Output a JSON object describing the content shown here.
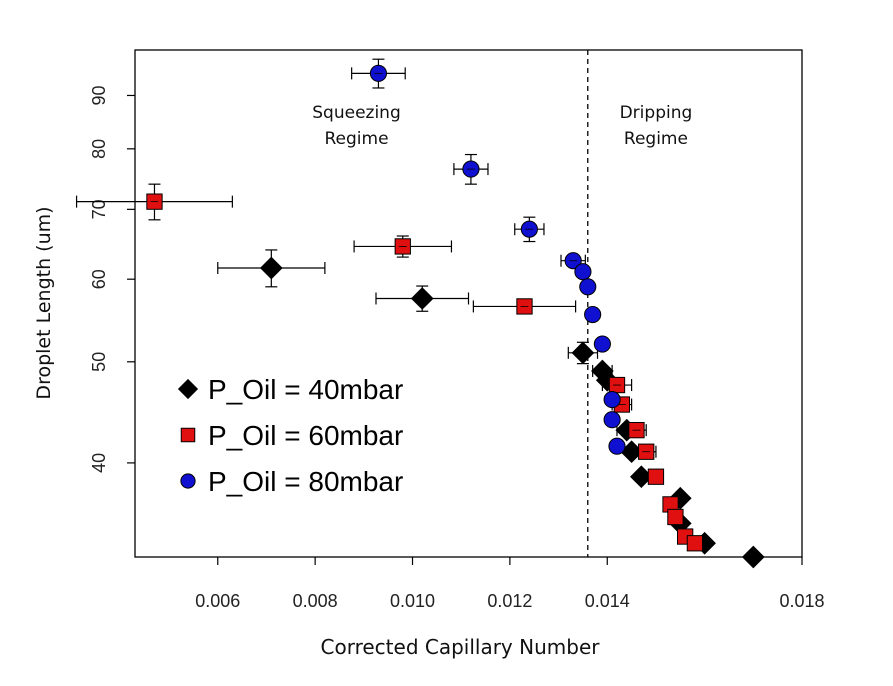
{
  "chart_data": {
    "type": "scatter",
    "xlabel": "Corrected Capillary Number",
    "ylabel": "Droplet Length (um)",
    "y_scale": "log",
    "xlim": [
      0.0043,
      0.018
    ],
    "ylim": [
      32.5,
      99.5
    ],
    "x_ticks": [
      0.006,
      0.008,
      0.01,
      0.012,
      0.014,
      0.018
    ],
    "x_tick_labels": [
      "0.006",
      "0.008",
      "0.010",
      "0.012",
      "0.014",
      "0.018"
    ],
    "y_ticks": [
      40,
      50,
      60,
      70,
      80,
      90
    ],
    "y_tick_labels": [
      "40",
      "50",
      "60",
      "70",
      "80",
      "90"
    ],
    "regime_boundary_x": 0.0136,
    "annotations": [
      {
        "lines": [
          "Squeezing",
          "Regime"
        ],
        "x": 0.00885,
        "y": 83
      },
      {
        "lines": [
          "Dripping",
          "Regime"
        ],
        "x": 0.015,
        "y": 83
      }
    ],
    "legend": {
      "position": "bottom-left"
    },
    "series": [
      {
        "name": "P_Oil = 40mbar",
        "marker": "diamond",
        "color": "#000000",
        "points": [
          {
            "x": 0.0071,
            "y": 61.5,
            "xerr": 0.0011,
            "yerr": 2.5
          },
          {
            "x": 0.0102,
            "y": 57.5,
            "xerr": 0.00095,
            "yerr": 1.6
          },
          {
            "x": 0.0135,
            "y": 51.0,
            "xerr": 0.0003,
            "yerr": 1.2
          },
          {
            "x": 0.0139,
            "y": 49.0,
            "xerr": 0.0002
          },
          {
            "x": 0.014,
            "y": 48.0
          },
          {
            "x": 0.0144,
            "y": 43.0,
            "xerr": 0.0002
          },
          {
            "x": 0.0145,
            "y": 41.0
          },
          {
            "x": 0.0147,
            "y": 38.8
          },
          {
            "x": 0.0155,
            "y": 37.0
          },
          {
            "x": 0.0155,
            "y": 35.0
          },
          {
            "x": 0.016,
            "y": 33.5
          },
          {
            "x": 0.017,
            "y": 32.5
          }
        ]
      },
      {
        "name": "P_Oil = 60mbar",
        "marker": "square",
        "color": "#e01010",
        "points": [
          {
            "x": 0.0047,
            "y": 71.2,
            "xerr": 0.0016,
            "yerr": 2.8
          },
          {
            "x": 0.0098,
            "y": 64.5,
            "xerr": 0.001,
            "yerr": 1.5
          },
          {
            "x": 0.0123,
            "y": 56.5,
            "xerr": 0.00105
          },
          {
            "x": 0.0142,
            "y": 47.5,
            "xerr": 0.0003
          },
          {
            "x": 0.0143,
            "y": 45.5,
            "xerr": 0.0002
          },
          {
            "x": 0.0146,
            "y": 43.0,
            "xerr": 0.0002
          },
          {
            "x": 0.0148,
            "y": 41.0,
            "xerr": 0.0002
          },
          {
            "x": 0.015,
            "y": 38.8
          },
          {
            "x": 0.0153,
            "y": 36.5
          },
          {
            "x": 0.0154,
            "y": 35.5
          },
          {
            "x": 0.0156,
            "y": 34.0
          },
          {
            "x": 0.0158,
            "y": 33.5
          }
        ]
      },
      {
        "name": "P_Oil = 80mbar",
        "marker": "circle",
        "color": "#1010d0",
        "points": [
          {
            "x": 0.0093,
            "y": 94.5,
            "xerr": 0.00055,
            "yerr": 3.0
          },
          {
            "x": 0.0112,
            "y": 76.5,
            "xerr": 0.00035,
            "yerr": 2.5
          },
          {
            "x": 0.0124,
            "y": 67.0,
            "xerr": 0.0003,
            "yerr": 1.8
          },
          {
            "x": 0.0133,
            "y": 62.5,
            "xerr": 0.00025
          },
          {
            "x": 0.0135,
            "y": 61.0
          },
          {
            "x": 0.0136,
            "y": 59.0
          },
          {
            "x": 0.0137,
            "y": 55.5
          },
          {
            "x": 0.0139,
            "y": 52.0
          },
          {
            "x": 0.0141,
            "y": 46.0
          },
          {
            "x": 0.0141,
            "y": 44.0
          },
          {
            "x": 0.0142,
            "y": 41.5
          }
        ]
      }
    ]
  }
}
